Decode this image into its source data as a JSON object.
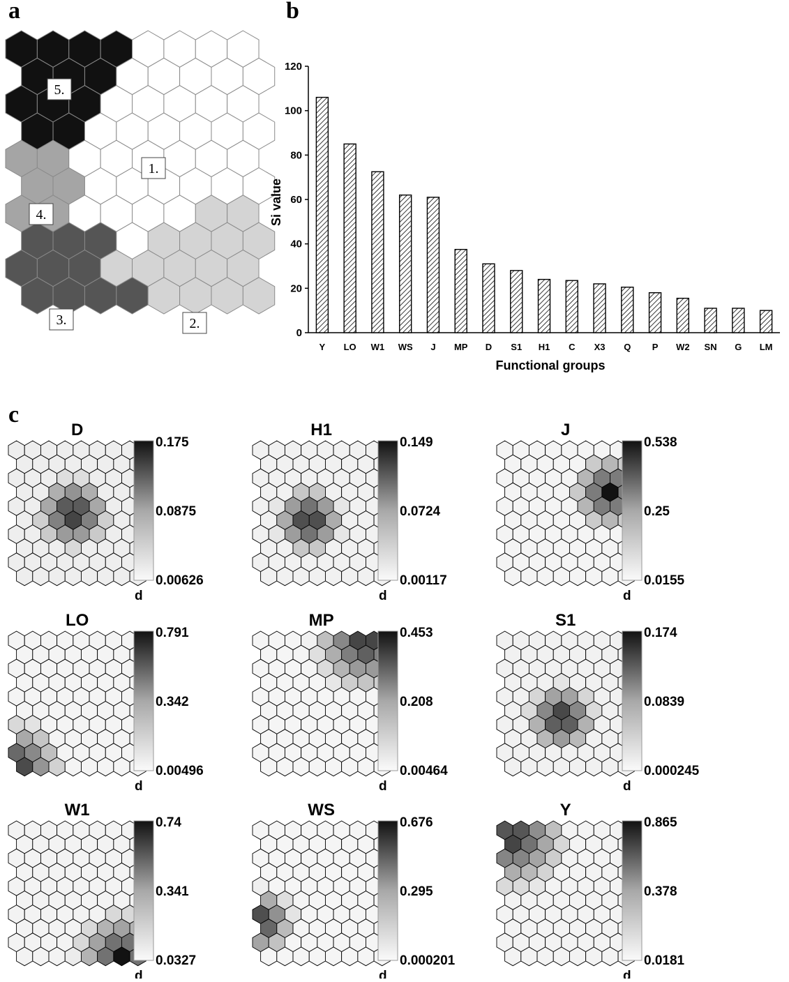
{
  "panel_labels": [
    "a",
    "b",
    "c"
  ],
  "chart_data": [
    {
      "type": "other",
      "description": "SOM hexagonal map clusters",
      "grid": {
        "cols": 8,
        "rows": 10
      },
      "colors": {
        "1": "#ffffff",
        "2": "#d4d4d4",
        "3": "#555555",
        "4": "#a5a5a5",
        "5": "#111111"
      },
      "clusters": [
        "5,5,5,5,1,1,1,1",
        "5,5,5,1,1,1,1,1",
        "5,5,5,1,1,1,1,1",
        "5,5,1,1,1,1,1,1",
        "4,4,1,1,1,1,1,1",
        "4,4,1,1,1,1,1,1",
        "4,4,1,1,1,1,2,2",
        "3,3,3,1,2,2,2,2",
        "3,3,3,2,2,2,2,2",
        "3,3,3,3,2,2,2,2"
      ],
      "cluster_labels": [
        "1.",
        "2.",
        "3.",
        "4.",
        "5."
      ]
    },
    {
      "type": "bar",
      "categories": [
        "Y",
        "LO",
        "W1",
        "WS",
        "J",
        "MP",
        "D",
        "S1",
        "H1",
        "C",
        "X3",
        "Q",
        "P",
        "W2",
        "SN",
        "G",
        "LM"
      ],
      "values": [
        106,
        85,
        72.5,
        62,
        61,
        37.5,
        31,
        28,
        24,
        23.5,
        22,
        20.5,
        18,
        15.5,
        11,
        11,
        10
      ],
      "xlabel": "Functional groups",
      "ylabel": "Si value",
      "ylim": [
        0,
        120
      ],
      "yticks": [
        0,
        20,
        40,
        60,
        80,
        100,
        120
      ],
      "pattern": "diagonal-hatch"
    },
    {
      "type": "heatmap",
      "description": "SOM component planes",
      "colorbar_label": "d",
      "maps": [
        {
          "title": "D",
          "max": "0.175",
          "mid": "0.0875",
          "min": "0.00626",
          "center": [
            3.5,
            4.5
          ],
          "radius": 2.3,
          "falloff": 0.85,
          "base": 0.1
        },
        {
          "title": "H1",
          "max": "0.149",
          "mid": "0.0724",
          "min": "0.00117",
          "center": [
            3,
            5
          ],
          "radius": 2.2,
          "falloff": 0.85,
          "base": 0.08
        },
        {
          "title": "J",
          "max": "0.538",
          "mid": "0.25",
          "min": "0.0155",
          "center": [
            6.5,
            3
          ],
          "radius": 2.5,
          "falloff": 0.8,
          "base": 0.05
        },
        {
          "title": "LO",
          "max": "0.791",
          "mid": "0.342",
          "min": "0.00496",
          "center": [
            0,
            9
          ],
          "radius": 3,
          "falloff": 0.75,
          "base": 0.05
        },
        {
          "title": "MP",
          "max": "0.453",
          "mid": "0.208",
          "min": "0.00464",
          "center": [
            6.5,
            0
          ],
          "radius": 3.5,
          "falloff": 0.75,
          "base": 0.04
        },
        {
          "title": "S1",
          "max": "0.174",
          "mid": "0.0839",
          "min": "0.000245",
          "center": [
            3.5,
            5.5
          ],
          "radius": 2.2,
          "falloff": 0.85,
          "base": 0.08
        },
        {
          "title": "W1",
          "max": "0.74",
          "mid": "0.341",
          "min": "0.0327",
          "center": [
            6.5,
            9
          ],
          "radius": 3,
          "falloff": 0.75,
          "base": 0.06
        },
        {
          "title": "WS",
          "max": "0.676",
          "mid": "0.295",
          "min": "0.000201",
          "center": [
            0,
            6.5
          ],
          "radius": 2.2,
          "falloff": 0.8,
          "base": 0.04
        },
        {
          "title": "Y",
          "max": "0.865",
          "mid": "0.378",
          "min": "0.0181",
          "center": [
            0.5,
            0.5
          ],
          "radius": 3.5,
          "falloff": 0.7,
          "base": 0.06
        }
      ]
    }
  ]
}
